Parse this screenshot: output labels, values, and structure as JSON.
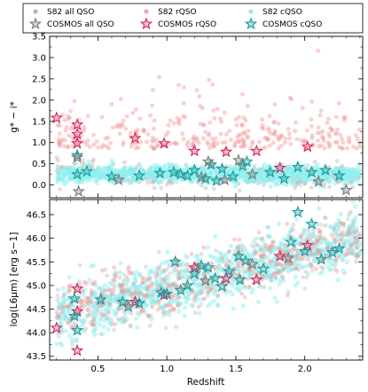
{
  "chart_data": [
    {
      "type": "scatter",
      "panel": "top",
      "ylabel": "g* − i*",
      "xlabel": "",
      "xlim": [
        0.15,
        2.42
      ],
      "ylim": [
        -0.3,
        3.5
      ],
      "yticks": [
        0.0,
        0.5,
        1.0,
        1.5,
        2.0,
        2.5,
        3.0,
        3.5
      ],
      "ytick_labels": [
        "0.0",
        "0.5",
        "1.0",
        "1.5",
        "2.0",
        "2.5",
        "3.0",
        "3.5"
      ],
      "xticks": [
        0.5,
        1.0,
        1.5,
        2.0
      ],
      "grid": false,
      "legend": {
        "placement": "top, above panels",
        "entries": [
          {
            "label": "S82 all QSO",
            "marker": "circle",
            "color": "#b8b8b8"
          },
          {
            "label": "S82 rQSO",
            "marker": "circle",
            "color": "#f3a6a6"
          },
          {
            "label": "S82 cQSO",
            "marker": "circle",
            "color": "#8ef0f0"
          },
          {
            "label": "COSMOS all QSO",
            "marker": "star",
            "color": "#7a7a7a"
          },
          {
            "label": "COSMOS rQSO",
            "marker": "star",
            "color": "#d6225a"
          },
          {
            "label": "COSMOS cQSO",
            "marker": "star",
            "color": "#1c9a9a"
          }
        ]
      },
      "series": [
        {
          "name": "COSMOS rQSO",
          "points": [
            [
              0.2,
              1.58
            ],
            [
              0.35,
              1.42
            ],
            [
              0.35,
              1.2
            ],
            [
              0.35,
              0.98
            ],
            [
              0.77,
              1.1
            ],
            [
              0.98,
              0.98
            ],
            [
              1.2,
              0.8
            ],
            [
              1.43,
              0.78
            ],
            [
              1.65,
              0.8
            ],
            [
              2.02,
              0.9
            ],
            [
              1.82,
              0.4
            ]
          ]
        },
        {
          "name": "COSMOS cQSO",
          "points": [
            [
              0.35,
              0.7
            ],
            [
              0.35,
              0.25
            ],
            [
              0.6,
              0.2
            ],
            [
              0.8,
              0.22
            ],
            [
              0.95,
              0.28
            ],
            [
              1.05,
              0.3
            ],
            [
              1.1,
              0.25
            ],
            [
              1.15,
              0.22
            ],
            [
              1.2,
              0.35
            ],
            [
              1.28,
              0.15
            ],
            [
              1.32,
              0.48
            ],
            [
              1.36,
              0.1
            ],
            [
              1.4,
              0.38
            ],
            [
              1.48,
              0.2
            ],
            [
              1.55,
              0.45
            ],
            [
              1.58,
              0.55
            ],
            [
              1.75,
              0.3
            ],
            [
              1.85,
              0.15
            ],
            [
              1.95,
              0.42
            ],
            [
              2.05,
              0.3
            ],
            [
              2.15,
              0.35
            ],
            [
              2.25,
              0.22
            ],
            [
              0.42,
              0.32
            ]
          ]
        },
        {
          "name": "COSMOS all QSO",
          "points": [
            [
              0.36,
              -0.15
            ],
            [
              0.35,
              0.65
            ],
            [
              0.65,
              0.12
            ],
            [
              1.25,
              0.18
            ],
            [
              1.3,
              0.55
            ],
            [
              1.42,
              0.12
            ],
            [
              1.52,
              0.58
            ],
            [
              1.62,
              0.25
            ],
            [
              2.3,
              -0.12
            ],
            [
              2.1,
              0.08
            ]
          ]
        }
      ]
    },
    {
      "type": "scatter",
      "panel": "bottom",
      "ylabel": "log(L6μm) [erg s−1]",
      "xlabel": "Redshift",
      "xlim": [
        0.15,
        2.42
      ],
      "ylim": [
        43.42,
        46.82
      ],
      "yticks": [
        43.5,
        44.0,
        44.5,
        45.0,
        45.5,
        46.0,
        46.5
      ],
      "ytick_labels": [
        "43.5",
        "44.0",
        "44.5",
        "45.0",
        "45.5",
        "46.0",
        "46.5"
      ],
      "xticks": [
        0.5,
        1.0,
        1.5,
        2.0
      ],
      "xtick_labels": [
        "0.5",
        "1.0",
        "1.5",
        "2.0"
      ],
      "grid": false,
      "series": [
        {
          "name": "COSMOS rQSO",
          "points": [
            [
              0.2,
              44.1
            ],
            [
              0.35,
              44.93
            ],
            [
              0.35,
              44.45
            ],
            [
              0.35,
              43.62
            ],
            [
              0.77,
              44.65
            ],
            [
              0.98,
              44.8
            ],
            [
              1.2,
              45.38
            ],
            [
              1.43,
              45.15
            ],
            [
              1.65,
              45.12
            ],
            [
              2.02,
              45.85
            ],
            [
              1.82,
              45.62
            ]
          ]
        },
        {
          "name": "COSMOS cQSO",
          "points": [
            [
              0.33,
              44.72
            ],
            [
              0.33,
              44.35
            ],
            [
              0.35,
              44.05
            ],
            [
              0.52,
              44.7
            ],
            [
              0.68,
              44.65
            ],
            [
              0.8,
              44.62
            ],
            [
              1.0,
              44.82
            ],
            [
              1.06,
              45.5
            ],
            [
              1.1,
              44.9
            ],
            [
              1.15,
              45.0
            ],
            [
              1.2,
              45.25
            ],
            [
              1.3,
              45.38
            ],
            [
              1.35,
              45.15
            ],
            [
              1.4,
              44.98
            ],
            [
              1.45,
              45.3
            ],
            [
              1.53,
              45.12
            ],
            [
              1.57,
              45.52
            ],
            [
              1.7,
              45.35
            ],
            [
              1.9,
              45.92
            ],
            [
              1.95,
              46.55
            ],
            [
              2.05,
              46.3
            ],
            [
              2.12,
              45.55
            ],
            [
              2.2,
              45.7
            ],
            [
              0.96,
              44.85
            ],
            [
              1.25,
              45.42
            ],
            [
              1.52,
              45.62
            ],
            [
              2.0,
              45.72
            ],
            [
              2.25,
              45.78
            ]
          ]
        },
        {
          "name": "COSMOS all QSO",
          "points": [
            [
              0.72,
              44.55
            ],
            [
              1.62,
              45.45
            ],
            [
              1.88,
              45.58
            ],
            [
              1.28,
              45.1
            ]
          ]
        }
      ]
    }
  ]
}
